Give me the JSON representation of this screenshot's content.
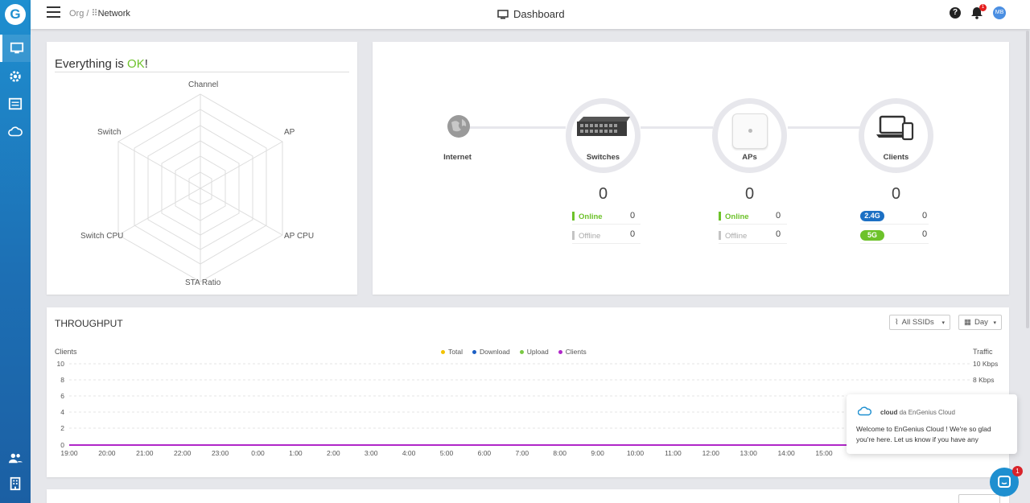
{
  "brand": {
    "logo_letter": "G"
  },
  "topbar": {
    "breadcrumb_org": "Org /",
    "breadcrumb_network": "Network",
    "title": "Dashboard",
    "help_label": "?",
    "notification_count": "1",
    "user_initials": "MB"
  },
  "status_card": {
    "title_prefix": "Everything is ",
    "title_ok": "OK",
    "title_suffix": "!",
    "radar_axes": [
      "Channel",
      "AP",
      "AP CPU",
      "STA Ratio",
      "Switch CPU",
      "Switch"
    ]
  },
  "topology": {
    "internet_label": "Internet",
    "switches": {
      "label": "Switches",
      "count": "0",
      "online_label": "Online",
      "online_value": "0",
      "offline_label": "Offline",
      "offline_value": "0"
    },
    "aps": {
      "label": "APs",
      "count": "0",
      "online_label": "Online",
      "online_value": "0",
      "offline_label": "Offline",
      "offline_value": "0"
    },
    "clients": {
      "label": "Clients",
      "count": "0",
      "band_24_label": "2.4G",
      "band_24_value": "0",
      "band_5_label": "5G",
      "band_5_value": "0"
    }
  },
  "throughput": {
    "title": "THROUGHPUT",
    "ssid_filter": "All SSIDs",
    "range_filter": "Day",
    "y_left_title": "Clients",
    "y_right_title": "Traffic",
    "y_left_ticks": [
      "10",
      "8",
      "6",
      "4",
      "2",
      "0"
    ],
    "y_right_ticks": [
      "10 Kbps",
      "8 Kbps"
    ],
    "legend": [
      {
        "name": "Total",
        "color": "#f2c200"
      },
      {
        "name": "Download",
        "color": "#1c5fc4"
      },
      {
        "name": "Upload",
        "color": "#7ac943"
      },
      {
        "name": "Clients",
        "color": "#b027c9"
      }
    ],
    "x_ticks": [
      "19:00",
      "20:00",
      "21:00",
      "22:00",
      "23:00",
      "0:00",
      "1:00",
      "2:00",
      "3:00",
      "4:00",
      "5:00",
      "6:00",
      "7:00",
      "8:00",
      "9:00",
      "10:00",
      "11:00",
      "12:00",
      "13:00",
      "14:00",
      "15:00"
    ]
  },
  "chat": {
    "sender": "cloud",
    "sender_suffix": "da EnGenius Cloud",
    "message": "Welcome to EnGenius Cloud ! We're so glad you're here. Let us know if you have any",
    "unread": "1"
  }
}
